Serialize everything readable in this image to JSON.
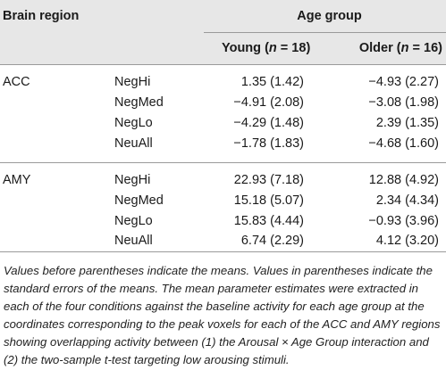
{
  "header": {
    "brain_region": "Brain region",
    "age_group": "Age group",
    "young_label": "Young",
    "young_n": "(n = 18)",
    "older_label": "Older",
    "older_n": "(n = 16)"
  },
  "rows": [
    {
      "region": "ACC",
      "cond": "NegHi",
      "young": "1.35 (1.42)",
      "older": "−4.93 (2.27)"
    },
    {
      "region": "",
      "cond": "NegMed",
      "young": "−4.91 (2.08)",
      "older": "−3.08 (1.98)"
    },
    {
      "region": "",
      "cond": "NegLo",
      "young": "−4.29 (1.48)",
      "older": "2.39 (1.35)"
    },
    {
      "region": "",
      "cond": "NeuAll",
      "young": "−1.78 (1.83)",
      "older": "−4.68 (1.60)"
    },
    {
      "region": "AMY",
      "cond": "NegHi",
      "young": "22.93 (7.18)",
      "older": "12.88 (4.92)"
    },
    {
      "region": "",
      "cond": "NegMed",
      "young": "15.18 (5.07)",
      "older": "2.34 (4.34)"
    },
    {
      "region": "",
      "cond": "NegLo",
      "young": "15.83 (4.44)",
      "older": "−0.93 (3.96)"
    },
    {
      "region": "",
      "cond": "NeuAll",
      "young": "6.74 (2.29)",
      "older": "4.12 (3.20)"
    }
  ],
  "note": "Values before parentheses indicate the means. Values in parentheses indicate the standard errors of the means. The mean parameter estimates were extracted in each of the four conditions against the baseline activity for each age group at the coordinates corresponding to the peak voxels for each of the ACC and AMY regions showing overlapping activity between (1) the Arousal × Age Group interaction and (2) the two-sample t-test targeting low arousing stimuli."
}
